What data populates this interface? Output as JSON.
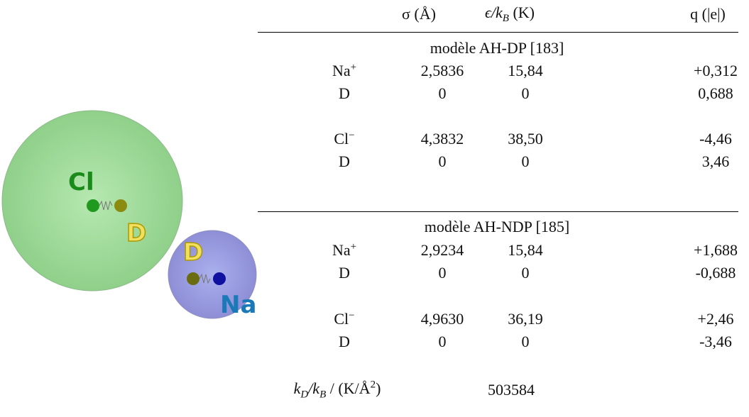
{
  "figure": {
    "labels": [
      "Cl",
      "D",
      "D",
      "Na"
    ]
  },
  "table": {
    "header": [
      [
        "σ (Å)"
      ],
      [
        "ϵ/k",
        "B",
        " (K)"
      ],
      [
        "q (|e|)"
      ]
    ],
    "sections": [
      {
        "title": "modèle AH-DP [183]",
        "rows": [
          {
            "label": [
              "Na",
              "+"
            ],
            "values": [
              "2,5836",
              "15,84",
              "+0,312"
            ]
          },
          {
            "label": [
              "D"
            ],
            "values": [
              "0",
              "0",
              "0,688"
            ]
          },
          {
            "label": [
              "Cl",
              "−"
            ],
            "values": [
              "4,3832",
              "38,50",
              "-4,46"
            ]
          },
          {
            "label": [
              "D"
            ],
            "values": [
              "0",
              "0",
              "3,46"
            ]
          }
        ]
      },
      {
        "title": "modèle AH-NDP [185]",
        "rows": [
          {
            "label": [
              "Na",
              "+"
            ],
            "values": [
              "2,9234",
              "15,84",
              "+1,688"
            ]
          },
          {
            "label": [
              "D"
            ],
            "values": [
              "0",
              "0",
              "-0,688"
            ]
          },
          {
            "label": [
              "Cl",
              "−"
            ],
            "values": [
              "4,9630",
              "36,19",
              "+2,46"
            ]
          },
          {
            "label": [
              "D"
            ],
            "values": [
              "0",
              "0",
              "-3,46"
            ]
          }
        ]
      }
    ],
    "footer": {
      "label": [
        "k",
        "D",
        "/k",
        "B",
        " / (K/Å",
        "2",
        ")"
      ],
      "value": "503584"
    }
  }
}
